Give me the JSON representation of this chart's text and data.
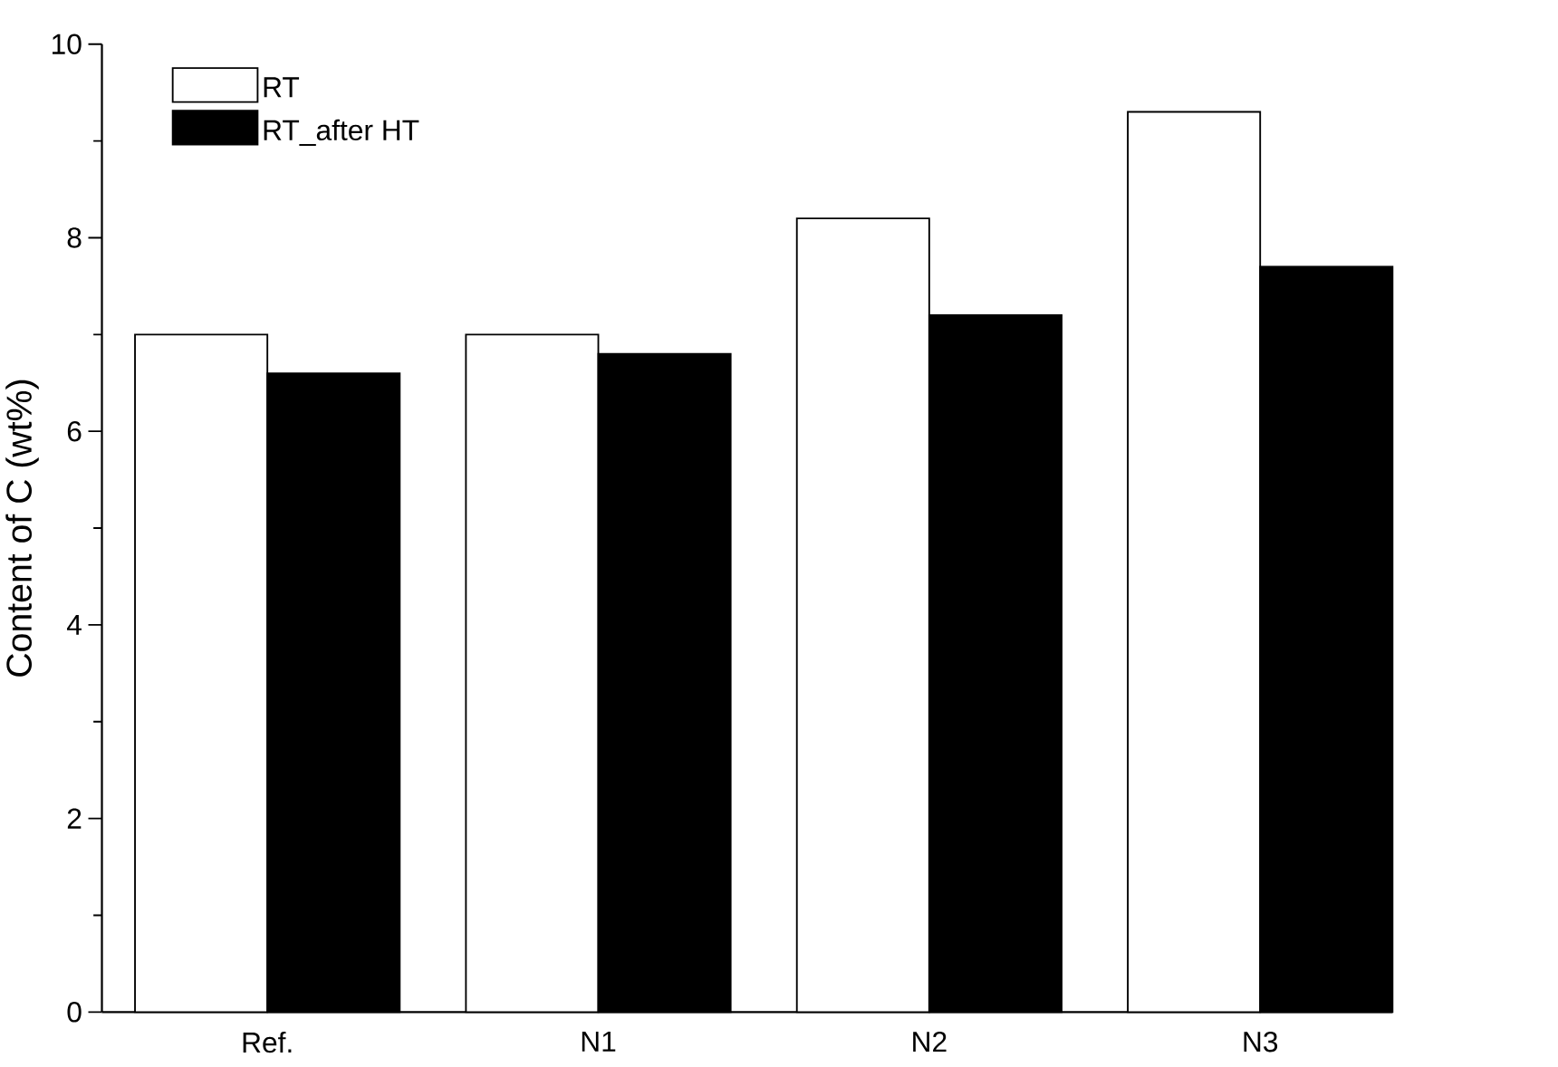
{
  "chart_data": {
    "type": "bar",
    "ylabel": "Content of C (wt%)",
    "categories": [
      "Ref.",
      "N1",
      "N2",
      "N3"
    ],
    "series": [
      {
        "name": "RT",
        "color": "#ffffff",
        "values": [
          7.0,
          7.0,
          8.2,
          9.3
        ]
      },
      {
        "name": "RT_after HT",
        "color": "#000000",
        "values": [
          6.6,
          6.8,
          7.2,
          7.7
        ]
      }
    ],
    "ylim": [
      0,
      10
    ],
    "yticks": [
      0,
      2,
      4,
      6,
      8,
      10
    ],
    "grid": false,
    "legend": "top left"
  }
}
